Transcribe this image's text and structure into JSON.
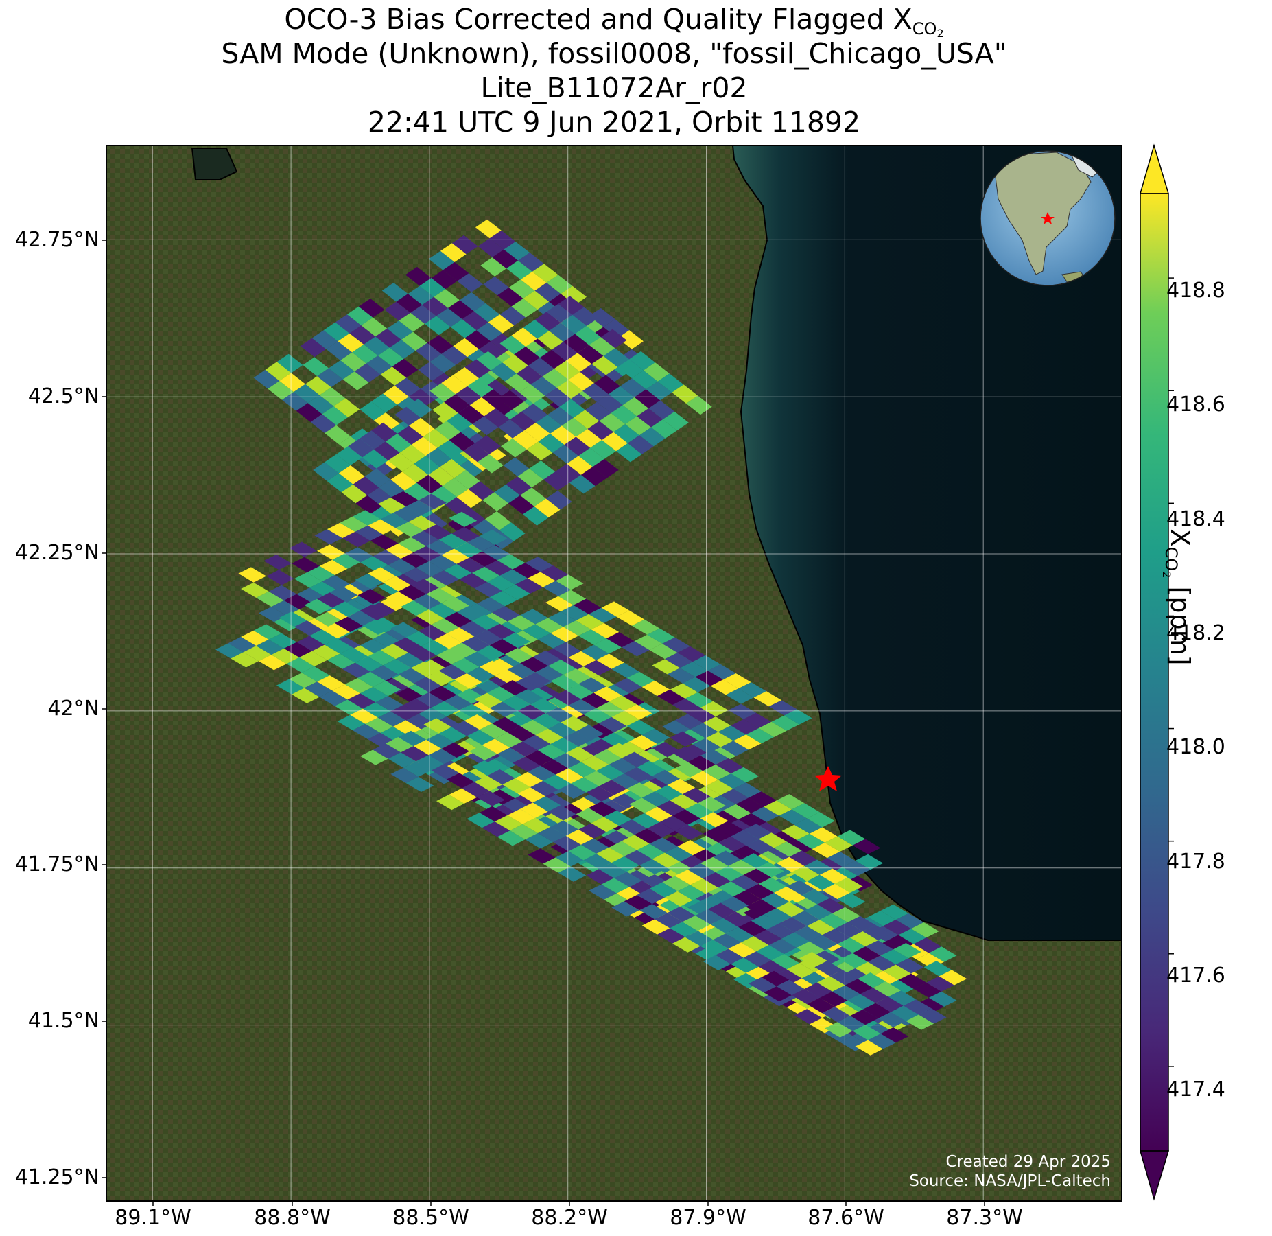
{
  "title": {
    "line1_prefix": "OCO-3 Bias Corrected and Quality Flagged X",
    "line1_sub": "CO",
    "line1_subsub": "2",
    "line2": "SAM Mode (Unknown), fossil0008, \"fossil_Chicago_USA\"",
    "line3": "Lite_B11072Ar_r02",
    "line4": "22:41 UTC 9 Jun 2021, Orbit 11892"
  },
  "map": {
    "lat_ticks": [
      "42.75°N",
      "42.5°N",
      "42.25°N",
      "42°N",
      "41.75°N",
      "41.5°N",
      "41.25°N"
    ],
    "lat_tick_values": [
      42.75,
      42.5,
      42.25,
      42.0,
      41.75,
      41.5,
      41.25
    ],
    "lon_ticks": [
      "89.1°W",
      "88.8°W",
      "88.5°W",
      "88.2°W",
      "87.9°W",
      "87.6°W",
      "87.3°W"
    ],
    "lon_tick_values": [
      -89.1,
      -88.8,
      -88.5,
      -88.2,
      -87.9,
      -87.6,
      -87.3
    ],
    "extent": {
      "lon_min": -89.2,
      "lon_max": -87.0,
      "lat_min": 41.22,
      "lat_max": 42.9
    },
    "target": {
      "name": "fossil_Chicago_USA",
      "lon": -87.63,
      "lat": 41.88,
      "marker": "red-star"
    },
    "grid": true,
    "credit_line1": "Created 29 Apr 2025",
    "credit_line2": "Source: NASA/JPL-Caltech",
    "colors": {
      "land": "#3a4a22",
      "lake": "#061820",
      "lake_near": "#1c4a48",
      "target": "#ff0000"
    }
  },
  "colorbar": {
    "title_prefix": "X",
    "title_sub": "CO",
    "title_subsub": "2",
    "title_suffix": " [ppm]",
    "tick_labels": [
      "418.8",
      "418.6",
      "418.4",
      "418.2",
      "418.0",
      "417.8",
      "417.6",
      "417.4"
    ],
    "tick_values": [
      418.8,
      418.6,
      418.4,
      418.2,
      418.0,
      417.8,
      417.6,
      417.4
    ],
    "vmin": 417.25,
    "vmax": 418.95,
    "colormap": "viridis",
    "extend": "both"
  },
  "chart_data": {
    "type": "heatmap",
    "variable": "XCO2",
    "units": "ppm",
    "date": "9 Jun 2021",
    "orbit": 11892,
    "approx_value_range": [
      417.3,
      418.9
    ],
    "swath_centers": [
      {
        "lon": -88.15,
        "lat": 42.45
      },
      {
        "lon": -88.0,
        "lat": 42.25
      },
      {
        "lon": -88.1,
        "lat": 42.05
      },
      {
        "lon": -88.0,
        "lat": 41.88
      },
      {
        "lon": -87.8,
        "lat": 41.72
      },
      {
        "lon": -87.55,
        "lat": 41.58
      }
    ]
  }
}
